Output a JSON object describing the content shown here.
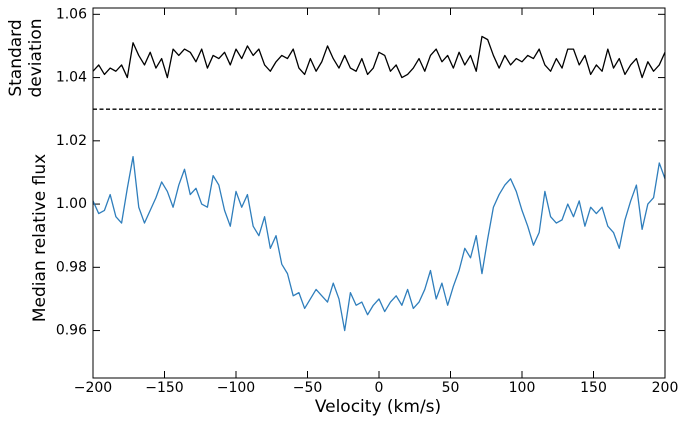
{
  "chart_data": {
    "type": "line",
    "xlabel": "Velocity (km/s)",
    "ylabel_upper": [
      "Standard",
      "deviation"
    ],
    "ylabel_lower": "Median relative flux",
    "xlim": [
      -200,
      200
    ],
    "xticks": [
      {
        "value": -200,
        "label": "−200"
      },
      {
        "value": -150,
        "label": "−150"
      },
      {
        "value": -100,
        "label": "−100"
      },
      {
        "value": -50,
        "label": "−50"
      },
      0,
      50,
      100,
      150,
      200
    ],
    "ylim": [
      0.945,
      1.062
    ],
    "yticks": [
      0.96,
      0.98,
      {
        "value": 1,
        "label": "1.00"
      },
      1.02,
      1.04,
      1.06
    ],
    "hline": 1.03,
    "x": [
      -200,
      -196,
      -192,
      -188,
      -184,
      -180,
      -176,
      -172,
      -168,
      -164,
      -160,
      -156,
      -152,
      -148,
      -144,
      -140,
      -136,
      -132,
      -128,
      -124,
      -120,
      -116,
      -112,
      -108,
      -104,
      -100,
      -96,
      -92,
      -88,
      -84,
      -80,
      -76,
      -72,
      -68,
      -64,
      -60,
      -56,
      -52,
      -48,
      -44,
      -40,
      -36,
      -32,
      -28,
      -24,
      -20,
      -16,
      -12,
      -8,
      -4,
      0,
      4,
      8,
      12,
      16,
      20,
      24,
      28,
      32,
      36,
      40,
      44,
      48,
      52,
      56,
      60,
      64,
      68,
      72,
      76,
      80,
      84,
      88,
      92,
      96,
      100,
      104,
      108,
      112,
      116,
      120,
      124,
      128,
      132,
      136,
      140,
      144,
      148,
      152,
      156,
      160,
      164,
      168,
      172,
      176,
      180,
      184,
      188,
      192,
      196,
      200
    ],
    "series": [
      {
        "color": "#000000",
        "values": [
          1.042,
          1.044,
          1.041,
          1.043,
          1.042,
          1.044,
          1.04,
          1.051,
          1.047,
          1.044,
          1.048,
          1.043,
          1.046,
          1.04,
          1.049,
          1.047,
          1.049,
          1.048,
          1.045,
          1.049,
          1.043,
          1.047,
          1.046,
          1.048,
          1.044,
          1.049,
          1.046,
          1.05,
          1.047,
          1.049,
          1.044,
          1.042,
          1.045,
          1.047,
          1.046,
          1.049,
          1.043,
          1.041,
          1.046,
          1.042,
          1.045,
          1.05,
          1.046,
          1.043,
          1.047,
          1.043,
          1.042,
          1.046,
          1.041,
          1.043,
          1.048,
          1.047,
          1.042,
          1.044,
          1.04,
          1.041,
          1.043,
          1.046,
          1.042,
          1.047,
          1.049,
          1.045,
          1.047,
          1.043,
          1.048,
          1.044,
          1.047,
          1.042,
          1.053,
          1.052,
          1.047,
          1.043,
          1.047,
          1.044,
          1.046,
          1.045,
          1.047,
          1.046,
          1.049,
          1.044,
          1.042,
          1.046,
          1.043,
          1.049,
          1.049,
          1.044,
          1.047,
          1.041,
          1.044,
          1.042,
          1.049,
          1.043,
          1.046,
          1.041,
          1.044,
          1.046,
          1.04,
          1.045,
          1.042,
          1.044,
          1.048
        ]
      },
      {
        "color": "#2f7ebc",
        "values": [
          1.001,
          0.997,
          0.998,
          1.003,
          0.996,
          0.994,
          1.005,
          1.015,
          0.999,
          0.994,
          0.998,
          1.002,
          1.007,
          1.004,
          0.999,
          1.006,
          1.011,
          1.003,
          1.005,
          1.0,
          0.999,
          1.009,
          1.006,
          0.998,
          0.993,
          1.004,
          0.999,
          1.003,
          0.993,
          0.99,
          0.996,
          0.986,
          0.99,
          0.981,
          0.978,
          0.971,
          0.972,
          0.967,
          0.97,
          0.973,
          0.971,
          0.969,
          0.975,
          0.97,
          0.96,
          0.972,
          0.968,
          0.969,
          0.965,
          0.968,
          0.97,
          0.966,
          0.969,
          0.971,
          0.968,
          0.973,
          0.967,
          0.969,
          0.973,
          0.979,
          0.97,
          0.975,
          0.968,
          0.974,
          0.979,
          0.986,
          0.983,
          0.99,
          0.978,
          0.989,
          0.999,
          1.003,
          1.006,
          1.008,
          1.004,
          0.998,
          0.993,
          0.987,
          0.991,
          1.004,
          0.996,
          0.994,
          0.995,
          1.0,
          0.996,
          1.001,
          0.993,
          0.999,
          0.997,
          0.999,
          0.993,
          0.991,
          0.986,
          0.995,
          1.001,
          1.006,
          0.992,
          1.0,
          1.002,
          1.013,
          1.008
        ]
      }
    ]
  }
}
